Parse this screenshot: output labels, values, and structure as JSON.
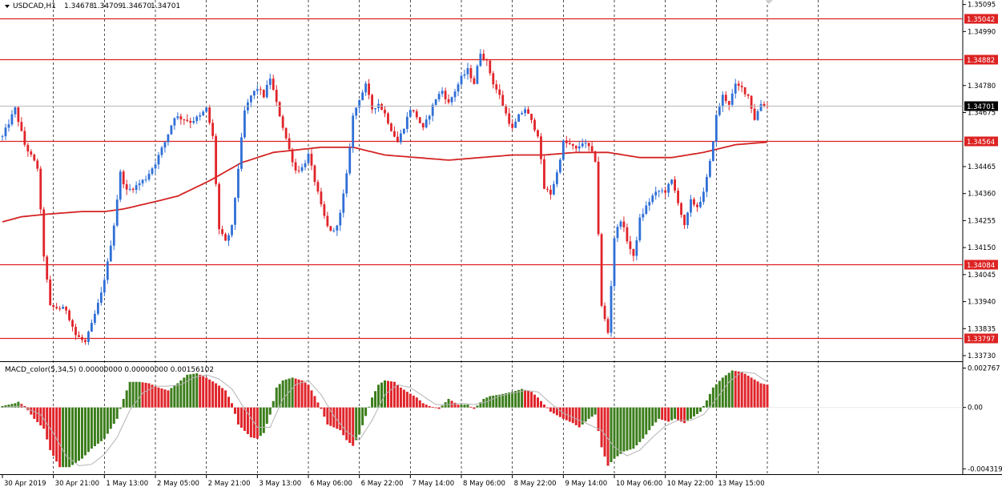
{
  "chart_data": [
    {
      "type": "candlestick",
      "title": "USDCAD,H1",
      "ohlc_header": [
        "1.34678",
        "1.34709",
        "1.34670",
        "1.34701"
      ],
      "current_price": "1.34701",
      "ylim": [
        1.3373,
        1.351
      ],
      "yticks": [
        "1.35095",
        "1.34990",
        "1.34780",
        "1.34675",
        "1.34465",
        "1.34360",
        "1.34255",
        "1.34150",
        "1.34045",
        "1.33940",
        "1.33835",
        "1.33730"
      ],
      "xticks": [
        "30 Apr 2019",
        "30 Apr 21:00",
        "1 May 13:00",
        "2 May 05:00",
        "2 May 21:00",
        "3 May 13:00",
        "6 May 06:00",
        "6 May 22:00",
        "7 May 14:00",
        "8 May 06:00",
        "8 May 22:00",
        "9 May 14:00",
        "10 May 06:00",
        "10 May 22:00",
        "13 May 15:00"
      ],
      "levels": [
        {
          "label": "1.35042",
          "value": 1.35042
        },
        {
          "label": "1.34882",
          "value": 1.34882
        },
        {
          "label": "1.34564",
          "value": 1.34564
        },
        {
          "label": "1.34084",
          "value": 1.34084
        },
        {
          "label": "1.33797",
          "value": 1.33797
        }
      ],
      "up_color": "#2f6fd6",
      "down_color": "#e0242a",
      "ma_color": "#d42424",
      "level_color": "#dd2222",
      "grid": "vertical dashed",
      "close_path": [
        [
          0,
          1.3458
        ],
        [
          4,
          1.3469
        ],
        [
          7,
          1.3455
        ],
        [
          11,
          1.3446
        ],
        [
          13,
          1.3412
        ],
        [
          15,
          1.3392
        ],
        [
          20,
          1.3391
        ],
        [
          23,
          1.3381
        ],
        [
          26,
          1.3378
        ],
        [
          28,
          1.3385
        ],
        [
          31,
          1.3397
        ],
        [
          33,
          1.3409
        ],
        [
          35,
          1.3424
        ],
        [
          37,
          1.3444
        ],
        [
          39,
          1.3437
        ],
        [
          42,
          1.3439
        ],
        [
          45,
          1.3442
        ],
        [
          48,
          1.3448
        ],
        [
          51,
          1.3456
        ],
        [
          54,
          1.3466
        ],
        [
          57,
          1.3465
        ],
        [
          59,
          1.3464
        ],
        [
          62,
          1.3466
        ],
        [
          64,
          1.3469
        ],
        [
          66,
          1.3458
        ],
        [
          68,
          1.3422
        ],
        [
          70,
          1.3417
        ],
        [
          72,
          1.3423
        ],
        [
          74,
          1.3446
        ],
        [
          76,
          1.3468
        ],
        [
          78,
          1.3474
        ],
        [
          80,
          1.3477
        ],
        [
          82,
          1.3474
        ],
        [
          84,
          1.3481
        ],
        [
          86,
          1.3471
        ],
        [
          88,
          1.3462
        ],
        [
          90,
          1.3453
        ],
        [
          92,
          1.3445
        ],
        [
          94,
          1.3446
        ],
        [
          96,
          1.3451
        ],
        [
          98,
          1.3441
        ],
        [
          100,
          1.3431
        ],
        [
          102,
          1.3423
        ],
        [
          104,
          1.3421
        ],
        [
          106,
          1.3428
        ],
        [
          108,
          1.3443
        ],
        [
          110,
          1.3466
        ],
        [
          112,
          1.3473
        ],
        [
          114,
          1.3478
        ],
        [
          116,
          1.3469
        ],
        [
          118,
          1.3471
        ],
        [
          120,
          1.3467
        ],
        [
          122,
          1.3461
        ],
        [
          124,
          1.3456
        ],
        [
          126,
          1.3462
        ],
        [
          128,
          1.3469
        ],
        [
          130,
          1.3466
        ],
        [
          132,
          1.3461
        ],
        [
          134,
          1.3467
        ],
        [
          136,
          1.3473
        ],
        [
          138,
          1.3476
        ],
        [
          140,
          1.3471
        ],
        [
          142,
          1.3476
        ],
        [
          144,
          1.3481
        ],
        [
          146,
          1.3484
        ],
        [
          148,
          1.3479
        ],
        [
          150,
          1.3491
        ],
        [
          152,
          1.3487
        ],
        [
          154,
          1.3479
        ],
        [
          156,
          1.3474
        ],
        [
          158,
          1.3467
        ],
        [
          160,
          1.3461
        ],
        [
          162,
          1.3466
        ],
        [
          164,
          1.3469
        ],
        [
          166,
          1.3464
        ],
        [
          168,
          1.3459
        ],
        [
          170,
          1.3438
        ],
        [
          172,
          1.3436
        ],
        [
          174,
          1.3444
        ],
        [
          176,
          1.3456
        ],
        [
          178,
          1.3455
        ],
        [
          180,
          1.3453
        ],
        [
          182,
          1.3456
        ],
        [
          184,
          1.3454
        ],
        [
          186,
          1.3449
        ],
        [
          188,
          1.3392
        ],
        [
          190,
          1.3382
        ],
        [
          192,
          1.3419
        ],
        [
          194,
          1.3426
        ],
        [
          196,
          1.3418
        ],
        [
          198,
          1.3411
        ],
        [
          200,
          1.3426
        ],
        [
          202,
          1.3431
        ],
        [
          204,
          1.3435
        ],
        [
          206,
          1.3437
        ],
        [
          208,
          1.3437
        ],
        [
          210,
          1.3441
        ],
        [
          212,
          1.3433
        ],
        [
          214,
          1.3423
        ],
        [
          216,
          1.3433
        ],
        [
          218,
          1.3431
        ],
        [
          220,
          1.3436
        ],
        [
          222,
          1.3448
        ],
        [
          224,
          1.3466
        ],
        [
          226,
          1.3474
        ],
        [
          228,
          1.3471
        ],
        [
          230,
          1.3478
        ],
        [
          232,
          1.3477
        ],
        [
          234,
          1.3474
        ],
        [
          236,
          1.3465
        ],
        [
          238,
          1.3471
        ],
        [
          240,
          1.347
        ]
      ],
      "ma_path": [
        [
          0,
          1.3425
        ],
        [
          6,
          1.3427
        ],
        [
          14,
          1.3428
        ],
        [
          25,
          1.3429
        ],
        [
          32,
          1.3429
        ],
        [
          38,
          1.343
        ],
        [
          45,
          1.3432
        ],
        [
          55,
          1.3435
        ],
        [
          65,
          1.3441
        ],
        [
          75,
          1.3448
        ],
        [
          85,
          1.3452
        ],
        [
          100,
          1.3454
        ],
        [
          110,
          1.3454
        ],
        [
          120,
          1.3451
        ],
        [
          130,
          1.345
        ],
        [
          140,
          1.3449
        ],
        [
          150,
          1.345
        ],
        [
          160,
          1.3451
        ],
        [
          170,
          1.3451
        ],
        [
          180,
          1.3452
        ],
        [
          190,
          1.3452
        ],
        [
          200,
          1.345
        ],
        [
          210,
          1.345
        ],
        [
          220,
          1.3452
        ],
        [
          230,
          1.3455
        ],
        [
          240,
          1.3456
        ]
      ]
    },
    {
      "type": "bar",
      "title": "MACD_color(5,34,5) 0.00000000 0.00000000 0.00156102",
      "ylim": [
        -0.0043,
        0.0028
      ],
      "yticks": [
        "0.002767",
        "0.00",
        "-0.004319"
      ],
      "positive_color": "#3b7d1b",
      "negative_color": "#e0242a",
      "signal_color": "#b4b4b4",
      "histogram_path": [
        [
          0,
          0.0001
        ],
        [
          4,
          0.0003
        ],
        [
          5,
          0.0004
        ],
        [
          7,
          0.0001
        ],
        [
          10,
          -0.0008
        ],
        [
          13,
          -0.0015
        ],
        [
          15,
          -0.003
        ],
        [
          18,
          -0.0042
        ],
        [
          21,
          -0.0042
        ],
        [
          25,
          -0.0036
        ],
        [
          28,
          -0.0029
        ],
        [
          32,
          -0.0022
        ],
        [
          36,
          -0.0008
        ],
        [
          38,
          0.0006
        ],
        [
          40,
          0.0018
        ],
        [
          43,
          0.0018
        ],
        [
          46,
          0.0017
        ],
        [
          49,
          0.0014
        ],
        [
          52,
          0.0012
        ],
        [
          55,
          0.0017
        ],
        [
          58,
          0.0023
        ],
        [
          61,
          0.0024
        ],
        [
          64,
          0.0021
        ],
        [
          67,
          0.0017
        ],
        [
          70,
          0.0012
        ],
        [
          72,
          0.0003
        ],
        [
          74,
          -0.0012
        ],
        [
          78,
          -0.0021
        ],
        [
          80,
          -0.0022
        ],
        [
          82,
          -0.0018
        ],
        [
          84,
          -0.0005
        ],
        [
          86,
          0.0014
        ],
        [
          88,
          0.0019
        ],
        [
          91,
          0.0021
        ],
        [
          94,
          0.0019
        ],
        [
          96,
          0.0016
        ],
        [
          98,
          0.0008
        ],
        [
          100,
          -0.0001
        ],
        [
          102,
          -0.0012
        ],
        [
          106,
          -0.0016
        ],
        [
          108,
          -0.0023
        ],
        [
          110,
          -0.0027
        ],
        [
          112,
          -0.0019
        ],
        [
          114,
          -0.0006
        ],
        [
          116,
          0.0007
        ],
        [
          118,
          0.0016
        ],
        [
          120,
          0.0019
        ],
        [
          123,
          0.0018
        ],
        [
          125,
          0.0014
        ],
        [
          127,
          0.0011
        ],
        [
          130,
          0.0007
        ],
        [
          132,
          0.0003
        ],
        [
          134,
          0.0001
        ],
        [
          137,
          -0.0001
        ],
        [
          140,
          0.0006
        ],
        [
          143,
          0.0002
        ],
        [
          146,
          0.0002
        ],
        [
          148,
          -0.0001
        ],
        [
          151,
          0.0006
        ],
        [
          153,
          0.0008
        ],
        [
          156,
          0.0009
        ],
        [
          160,
          0.0011
        ],
        [
          163,
          0.0013
        ],
        [
          166,
          0.0011
        ],
        [
          168,
          0.0007
        ],
        [
          170,
          0.0002
        ],
        [
          172,
          -0.0003
        ],
        [
          176,
          -0.0008
        ],
        [
          179,
          -0.0011
        ],
        [
          181,
          -0.0014
        ],
        [
          184,
          -0.0008
        ],
        [
          186,
          -0.0005
        ],
        [
          188,
          -0.0028
        ],
        [
          190,
          -0.0041
        ],
        [
          192,
          -0.0036
        ],
        [
          195,
          -0.0031
        ],
        [
          198,
          -0.0029
        ],
        [
          201,
          -0.0022
        ],
        [
          204,
          -0.0013
        ],
        [
          206,
          -0.0008
        ],
        [
          209,
          -0.001
        ],
        [
          211,
          -0.0008
        ],
        [
          214,
          -0.0011
        ],
        [
          216,
          -0.0008
        ],
        [
          219,
          -0.0003
        ],
        [
          221,
          0.0005
        ],
        [
          223,
          0.0014
        ],
        [
          226,
          0.0021
        ],
        [
          229,
          0.0026
        ],
        [
          232,
          0.0025
        ],
        [
          235,
          0.0021
        ],
        [
          238,
          0.0017
        ],
        [
          240,
          0.0016
        ]
      ],
      "signal_path": [
        [
          0,
          0.0
        ],
        [
          6,
          0.0001
        ],
        [
          12,
          -0.0005
        ],
        [
          16,
          -0.0018
        ],
        [
          20,
          -0.0034
        ],
        [
          24,
          -0.0041
        ],
        [
          28,
          -0.004
        ],
        [
          32,
          -0.0033
        ],
        [
          36,
          -0.0021
        ],
        [
          40,
          -0.0002
        ],
        [
          44,
          0.001
        ],
        [
          48,
          0.0015
        ],
        [
          52,
          0.0015
        ],
        [
          56,
          0.0016
        ],
        [
          60,
          0.0021
        ],
        [
          64,
          0.0023
        ],
        [
          68,
          0.002
        ],
        [
          72,
          0.0013
        ],
        [
          76,
          -0.0001
        ],
        [
          80,
          -0.0014
        ],
        [
          84,
          -0.0014
        ],
        [
          88,
          0.0006
        ],
        [
          92,
          0.0016
        ],
        [
          96,
          0.0019
        ],
        [
          100,
          0.0009
        ],
        [
          104,
          -0.0006
        ],
        [
          108,
          -0.0017
        ],
        [
          112,
          -0.0023
        ],
        [
          116,
          -0.0009
        ],
        [
          120,
          0.0009
        ],
        [
          124,
          0.0016
        ],
        [
          128,
          0.0014
        ],
        [
          132,
          0.0008
        ],
        [
          136,
          0.0002
        ],
        [
          140,
          0.0002
        ],
        [
          144,
          0.0003
        ],
        [
          148,
          0.0002
        ],
        [
          152,
          0.0004
        ],
        [
          156,
          0.0008
        ],
        [
          160,
          0.001
        ],
        [
          164,
          0.0012
        ],
        [
          168,
          0.0011
        ],
        [
          172,
          0.0003
        ],
        [
          176,
          -0.0004
        ],
        [
          180,
          -0.0008
        ],
        [
          184,
          -0.0012
        ],
        [
          188,
          -0.0016
        ],
        [
          192,
          -0.0028
        ],
        [
          196,
          -0.0034
        ],
        [
          200,
          -0.003
        ],
        [
          204,
          -0.0021
        ],
        [
          208,
          -0.0013
        ],
        [
          212,
          -0.0009
        ],
        [
          216,
          -0.0009
        ],
        [
          220,
          -0.0005
        ],
        [
          224,
          0.0006
        ],
        [
          228,
          0.0018
        ],
        [
          232,
          0.0025
        ],
        [
          236,
          0.0024
        ],
        [
          240,
          0.0018
        ]
      ]
    }
  ]
}
